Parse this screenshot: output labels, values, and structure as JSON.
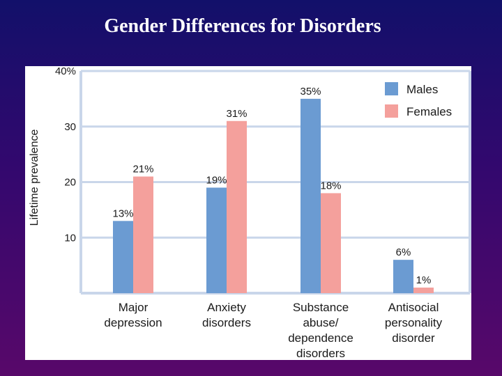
{
  "slide": {
    "title": "Gender Differences for Disorders"
  },
  "colors": {
    "males": "#6b9bd2",
    "females": "#f4a09c",
    "grid": "#c9d6ea",
    "frame": "#c9d6ea"
  },
  "chart_data": {
    "type": "bar",
    "title": "",
    "xlabel": "",
    "ylabel": "Lifetime prevalence",
    "ylim": [
      0,
      40
    ],
    "y_ticks": [
      10,
      20,
      30,
      40
    ],
    "y_tick_labels": [
      "10",
      "20",
      "30",
      "40%"
    ],
    "categories": [
      [
        "Major",
        "depression"
      ],
      [
        "Anxiety",
        "disorders"
      ],
      [
        "Substance",
        "abuse/",
        "dependence",
        "disorders"
      ],
      [
        "Antisocial",
        "personality",
        "disorder"
      ]
    ],
    "series": [
      {
        "name": "Males",
        "values": [
          13,
          19,
          35,
          6
        ],
        "labels": [
          "13%",
          "19%",
          "35%",
          "6%"
        ]
      },
      {
        "name": "Females",
        "values": [
          21,
          31,
          18,
          1
        ],
        "labels": [
          "21%",
          "31%",
          "18%",
          "1%"
        ]
      }
    ],
    "grid": true,
    "legend_position": "top-right"
  }
}
